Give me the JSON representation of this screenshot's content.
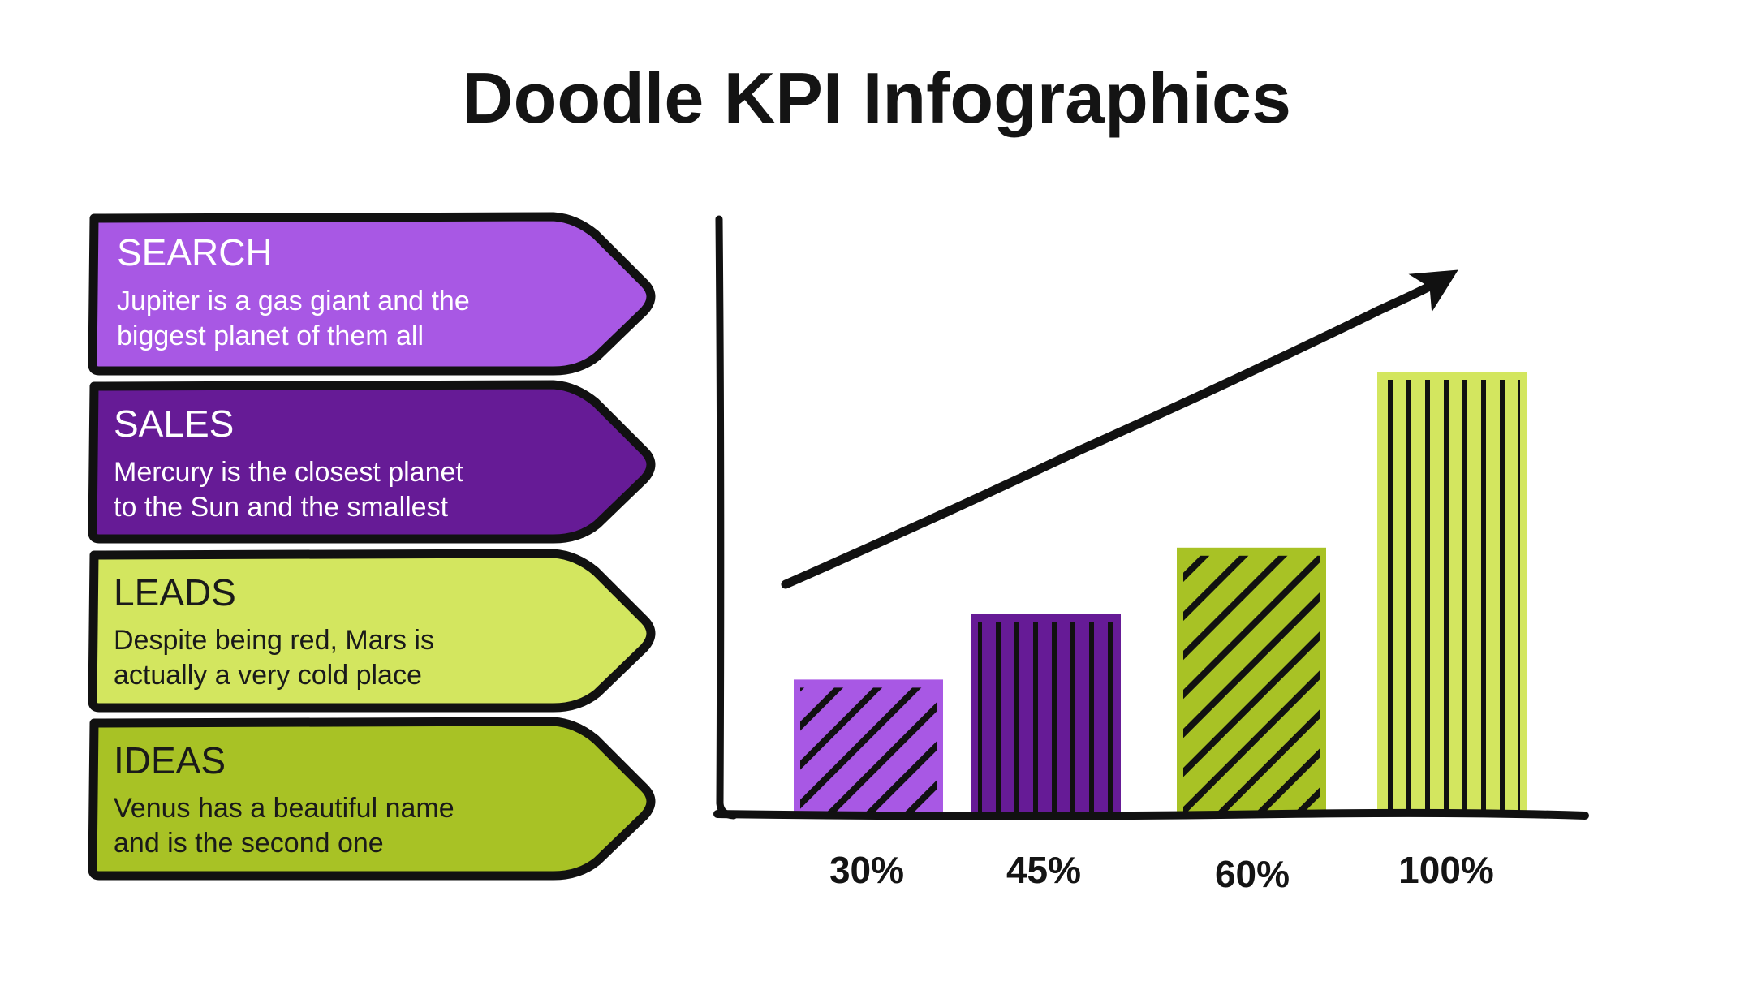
{
  "title": "Doodle KPI Infographics",
  "cards": [
    {
      "heading": "SEARCH",
      "line1": "Jupiter is a gas giant and the",
      "line2": "biggest planet of them all",
      "color": "#a858e4",
      "text_color": "#ffffff"
    },
    {
      "heading": "SALES",
      "line1": "Mercury is the closest planet",
      "line2": "to the Sun and the smallest",
      "color": "#661b96",
      "text_color": "#ffffff"
    },
    {
      "heading": "LEADS",
      "line1": "Despite being red, Mars is",
      "line2": "actually a very cold place",
      "color": "#d3e65f",
      "text_color": "#1a1a1a"
    },
    {
      "heading": "IDEAS",
      "line1": "Venus has a beautiful name",
      "line2": "and is the second one",
      "color": "#a8c225",
      "text_color": "#1a1a1a"
    }
  ],
  "chart_data": {
    "type": "bar",
    "categories": [
      "SEARCH",
      "SALES",
      "LEADS",
      "IDEAS"
    ],
    "values": [
      30,
      45,
      60,
      100
    ],
    "labels": [
      "30%",
      "45%",
      "60%",
      "100%"
    ],
    "ylim": [
      0,
      100
    ],
    "grid": false,
    "legend": "none",
    "trend_arrow": true,
    "colors": [
      "#a858e4",
      "#661b96",
      "#a8c225",
      "#d3e65f"
    ],
    "patterns": [
      "diagonal",
      "vertical",
      "diagonal",
      "vertical"
    ],
    "title": "",
    "xlabel": "",
    "ylabel": ""
  }
}
